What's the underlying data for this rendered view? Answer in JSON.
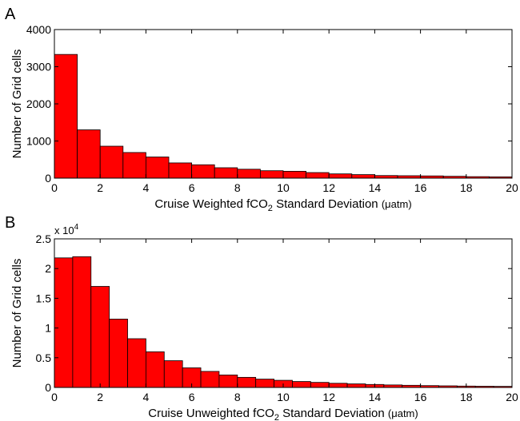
{
  "chart_data": [
    {
      "type": "bar",
      "panel_label": "A",
      "xlabel_parts": [
        "Cruise Weighted fCO",
        "2",
        " Standard Deviation ",
        "(μatm)"
      ],
      "ylabel": "Number of Grid cells",
      "xlim": [
        0,
        20
      ],
      "ylim": [
        0,
        4000
      ],
      "xticks": [
        0,
        2,
        4,
        6,
        8,
        10,
        12,
        14,
        16,
        18,
        20
      ],
      "yticks": [
        0,
        1000,
        2000,
        3000,
        4000
      ],
      "ytick_labels": [
        "0",
        "1000",
        "2000",
        "3000",
        "4000"
      ],
      "y_multiplier_parts": [],
      "bin_width": 1,
      "bin_edges_start": [
        0,
        1,
        2,
        3,
        4,
        5,
        6,
        7,
        8,
        9,
        10,
        11,
        12,
        13,
        14,
        15,
        16,
        17,
        18,
        19
      ],
      "values": [
        3330,
        1300,
        860,
        690,
        570,
        410,
        360,
        280,
        240,
        200,
        185,
        150,
        115,
        95,
        70,
        65,
        60,
        50,
        40,
        35
      ],
      "bar_color": "#ff0000",
      "grid": false,
      "legend": "none"
    },
    {
      "type": "bar",
      "panel_label": "B",
      "xlabel_parts": [
        "Cruise Unweighted fCO",
        "2",
        " Standard Deviation ",
        "(μatm)"
      ],
      "ylabel": "Number of Grid cells",
      "xlim": [
        0,
        20
      ],
      "ylim": [
        0,
        25000
      ],
      "xticks": [
        0,
        2,
        4,
        6,
        8,
        10,
        12,
        14,
        16,
        18,
        20
      ],
      "yticks": [
        0,
        5000,
        10000,
        15000,
        20000,
        25000
      ],
      "ytick_labels": [
        "0",
        "0.5",
        "1",
        "1.5",
        "2",
        "2.5"
      ],
      "y_multiplier_parts": [
        "x 10",
        "4"
      ],
      "bin_width": 0.8,
      "bin_edges_start": [
        0,
        0.8,
        1.6,
        2.4,
        3.2,
        4.0,
        4.8,
        5.6,
        6.4,
        7.2,
        8.0,
        8.8,
        9.6,
        10.4,
        11.2,
        12.0,
        12.8,
        13.6,
        14.4,
        15.2,
        16.0,
        16.8,
        17.6,
        18.4,
        19.2
      ],
      "values": [
        21800,
        22000,
        17000,
        11500,
        8200,
        6000,
        4500,
        3300,
        2700,
        2100,
        1700,
        1400,
        1200,
        1000,
        850,
        700,
        600,
        500,
        420,
        360,
        310,
        270,
        230,
        200,
        180
      ],
      "bar_color": "#ff0000",
      "grid": false,
      "legend": "none"
    }
  ]
}
